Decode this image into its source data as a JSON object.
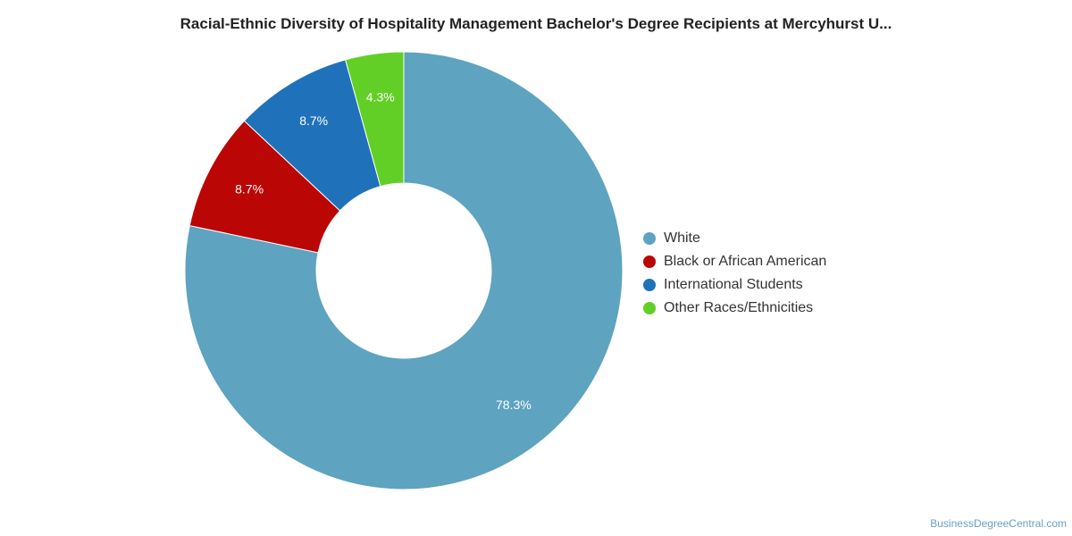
{
  "chart_data": {
    "type": "pie",
    "title": "Racial-Ethnic Diversity of Hospitality Management Bachelor's Degree Recipients at Mercyhurst U...",
    "categories": [
      "White",
      "Black or African American",
      "International Students",
      "Other Races/Ethnicities"
    ],
    "values": [
      78.3,
      8.7,
      8.7,
      4.3
    ],
    "labels": [
      "78.3%",
      "8.7%",
      "8.7%",
      "4.3%"
    ],
    "colors": [
      "#5ea3bf",
      "#bb0606",
      "#1f72ba",
      "#62cf27"
    ],
    "donut": true,
    "legend_position": "right"
  },
  "watermark": "BusinessDegreeCentral.com"
}
